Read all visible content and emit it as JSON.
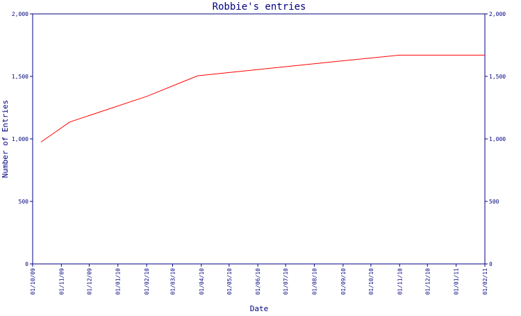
{
  "chart_data": {
    "type": "line",
    "title": "Robbie's entries",
    "xlabel": "Date",
    "ylabel": "Number of Entries",
    "ylim": [
      0,
      2000
    ],
    "y_ticks": [
      0,
      500,
      1000,
      1500,
      2000
    ],
    "y_tick_labels": [
      "0",
      "500",
      "1,000",
      "1,500",
      "2,000"
    ],
    "x_tick_labels": [
      "01/10/09",
      "01/11/09",
      "01/12/09",
      "01/01/10",
      "01/02/10",
      "01/03/10",
      "01/04/10",
      "01/05/10",
      "01/06/10",
      "01/07/10",
      "01/08/10",
      "01/09/10",
      "01/10/10",
      "01/11/10",
      "01/12/10",
      "01/01/11",
      "01/02/11"
    ],
    "xlim": [
      "2009-10-01",
      "2011-02-01"
    ],
    "series": [
      {
        "color": "#ff0000",
        "x": [
          "2009-10-10",
          "2009-11-10",
          "2010-02-01",
          "2010-03-28",
          "2010-06-01",
          "2010-09-01",
          "2010-11-01",
          "2011-02-01"
        ],
        "y": [
          975,
          1135,
          1340,
          1505,
          1555,
          1625,
          1670,
          1670
        ]
      }
    ],
    "axis_color": "#000080",
    "grid": false,
    "right_axis": true
  }
}
